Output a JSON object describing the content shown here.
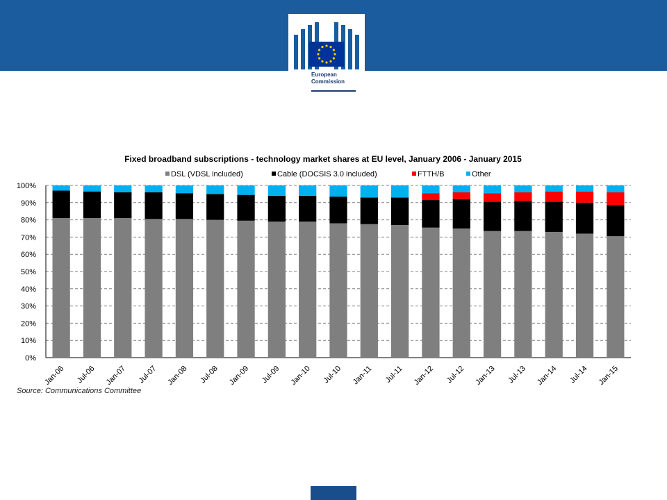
{
  "logo": {
    "line1": "European",
    "line2": "Commission"
  },
  "source": "Source: Communications Committee",
  "colors": {
    "dsl": "#7f7f7f",
    "cable": "#000000",
    "ftth": "#ff0000",
    "other": "#00b0f0",
    "header": "#1a5c9e"
  },
  "chart_data": {
    "type": "bar",
    "stacked": true,
    "title": "Fixed broadband subscriptions  - technology market shares at EU level,    January 2006 - January 2015",
    "xlabel": "",
    "ylabel": "",
    "ylim": [
      0,
      100
    ],
    "yticks": [
      "0%",
      "10%",
      "20%",
      "30%",
      "40%",
      "50%",
      "60%",
      "70%",
      "80%",
      "90%",
      "100%"
    ],
    "grid": true,
    "legend_position": "top",
    "categories": [
      "Jan-06",
      "Jul-06",
      "Jan-07",
      "Jul-07",
      "Jan-08",
      "Jul-08",
      "Jan-09",
      "Jul-09",
      "Jan-10",
      "Jul-10",
      "Jan-11",
      "Jul-11",
      "Jan-12",
      "Jul-12",
      "Jan-13",
      "Jul-13",
      "Jan-14",
      "Jul-14",
      "Jan-15"
    ],
    "series": [
      {
        "name": "DSL (VDSL included)",
        "color": "#7f7f7f",
        "values": [
          81,
          81,
          81,
          80.5,
          80.5,
          80,
          79.5,
          79,
          79,
          78,
          77.5,
          77,
          75.5,
          75,
          73.5,
          73.5,
          73,
          72,
          70.5
        ]
      },
      {
        "name": "Cable (DOCSIS 3.0 included)",
        "color": "#000000",
        "values": [
          16,
          15.5,
          15,
          15.5,
          15,
          15,
          15,
          15,
          15,
          15.5,
          15.5,
          16,
          16,
          17,
          17,
          17.5,
          17.5,
          18,
          18
        ]
      },
      {
        "name": "FTTH/B",
        "color": "#ff0000",
        "values": [
          0,
          0,
          0,
          0,
          0,
          0,
          0,
          0,
          0,
          0,
          0,
          0,
          4,
          4,
          5,
          5,
          6,
          6.5,
          7.5
        ]
      },
      {
        "name": "Other",
        "color": "#00b0f0",
        "values": [
          3,
          3.5,
          4,
          4,
          4.5,
          5,
          5.5,
          6,
          6,
          6.5,
          7,
          7,
          4.5,
          4,
          4.5,
          4,
          3.5,
          3.5,
          4
        ]
      }
    ]
  }
}
